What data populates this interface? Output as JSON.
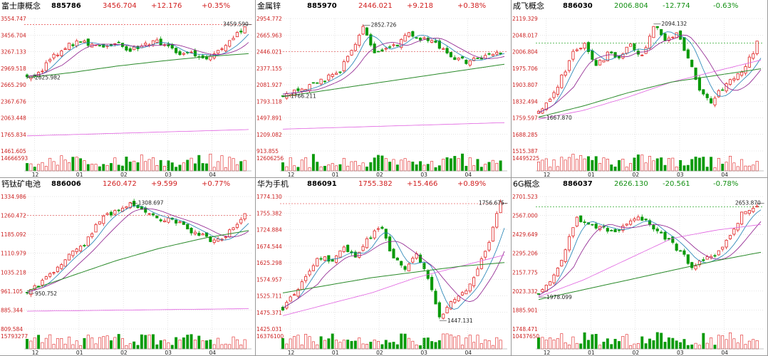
{
  "colors": {
    "up": "#e02020",
    "down": "#0a9a0a",
    "ma5": "#1d7fb3",
    "ma10": "#8b1a8b",
    "ma20": "#e060e0",
    "ma60": "#2a8a2a",
    "ma120": "#3aa0d0",
    "grid": "#c9c9c9",
    "axis": "#cc2222",
    "vol": "#aaaaaa"
  },
  "chart_data": [
    {
      "type": "candlestick",
      "name": "富士康概念",
      "code": "885786",
      "price": "3456.704",
      "change": "+12.176",
      "pct": "+0.35%",
      "direction": "up",
      "yticks": [
        "3554.747",
        "3456.704",
        "3267.133",
        "2969.518",
        "2665.290",
        "2367.676",
        "2063.448",
        "1765.834",
        "1461.605"
      ],
      "ymin": 1461.605,
      "ymax": 3554.747,
      "vol_label": "14666593",
      "months": [
        "12",
        "01",
        "02",
        "03",
        "04"
      ],
      "high_label": "3459.590",
      "low_label": "2625.982",
      "path": [
        2640,
        2700,
        2950,
        3100,
        3200,
        3150,
        3100,
        3180,
        3050,
        3150,
        3200,
        3100,
        2980,
        3000,
        2950,
        3050,
        3200,
        3456
      ],
      "long_ma": [
        2620,
        2700,
        2800,
        2880,
        2950,
        3000
      ],
      "extra_ma": [
        1700,
        1720,
        1740,
        1760,
        1780,
        1800
      ]
    },
    {
      "type": "candlestick",
      "name": "金属锌",
      "code": "885970",
      "price": "2446.021",
      "change": "+9.218",
      "pct": "+0.38%",
      "direction": "up",
      "yticks": [
        "2954.772",
        "2665.963",
        "2446.021",
        "2377.155",
        "2081.927",
        "1793.118",
        "1497.891",
        "1209.082",
        "913.855"
      ],
      "ymin": 913.855,
      "ymax": 2954.772,
      "vol_label": "12606256",
      "months": [
        "12",
        "01",
        "02",
        "03",
        "04"
      ],
      "high_label": "2852.726",
      "low_label": "1766.211",
      "path": [
        1790,
        1830,
        1880,
        1950,
        2050,
        2150,
        2450,
        2850,
        2450,
        2500,
        2560,
        2750,
        2650,
        2600,
        2450,
        2350,
        2280,
        2350,
        2400,
        2446
      ],
      "long_ma": [
        1750,
        1850,
        1950,
        2050,
        2150,
        2250
      ],
      "extra_ma": [
        1250,
        1270,
        1290,
        1310,
        1330,
        1350
      ]
    },
    {
      "type": "candlestick",
      "name": "成飞概念",
      "code": "886030",
      "price": "2006.804",
      "change": "-12.774",
      "pct": "-0.63%",
      "direction": "down",
      "yticks": [
        "2119.329",
        "2048.017",
        "2006.804",
        "1975.706",
        "1903.807",
        "1832.494",
        "1759.597",
        "1688.285",
        "1515.387"
      ],
      "ymin": 1515.387,
      "ymax": 2119.329,
      "vol_label": "14495225",
      "months": [
        "12",
        "01",
        "02",
        "03",
        "04"
      ],
      "high_label": "2094.132",
      "low_label": "1667.870",
      "path": [
        1690,
        1740,
        1850,
        1960,
        2000,
        1900,
        1960,
        1950,
        2000,
        1950,
        2094,
        2030,
        2050,
        1950,
        1800,
        1740,
        1800,
        1850,
        1900,
        2006
      ],
      "long_ma": [
        1670,
        1720,
        1780,
        1830,
        1860,
        1890
      ],
      "extra_ma": [
        1660,
        1700,
        1760,
        1830,
        1880,
        1930
      ]
    },
    {
      "type": "candlestick",
      "name": "钙钛矿电池",
      "code": "886006",
      "price": "1260.472",
      "change": "+9.599",
      "pct": "+0.77%",
      "direction": "up",
      "yticks": [
        "1334.986",
        "1260.472",
        "1185.092",
        "1110.979",
        "1035.218",
        "961.105",
        "885.344",
        "809.584"
      ],
      "ymin": 809.584,
      "ymax": 1334.986,
      "vol_label": "15793277",
      "months": [
        "12",
        "01",
        "02",
        "03",
        "04"
      ],
      "high_label": "1308.697",
      "low_label": "950.752",
      "path": [
        955,
        990,
        1050,
        1110,
        1150,
        1240,
        1280,
        1309,
        1270,
        1250,
        1240,
        1210,
        1180,
        1150,
        1200,
        1260
      ],
      "long_ma": [
        960,
        1020,
        1080,
        1130,
        1170,
        1200
      ],
      "extra_ma": [
        880,
        882,
        884,
        886,
        888,
        890
      ]
    },
    {
      "type": "candlestick",
      "name": "华为手机",
      "code": "886091",
      "price": "1755.382",
      "change": "+15.466",
      "pct": "+0.89%",
      "direction": "up",
      "yticks": [
        "1774.130",
        "1755.382",
        "1724.884",
        "1674.544",
        "1625.298",
        "1574.957",
        "1525.711",
        "1475.371",
        "1425.031"
      ],
      "ymin": 1425.031,
      "ymax": 1774.13,
      "vol_label": "16376100",
      "months": [
        "12",
        "01",
        "02",
        "03",
        "04"
      ],
      "high_label": "1756.675",
      "low_label": "1447.131",
      "path": [
        1480,
        1520,
        1570,
        1620,
        1600,
        1640,
        1610,
        1660,
        1700,
        1620,
        1580,
        1620,
        1560,
        1450,
        1500,
        1520,
        1580,
        1650,
        1756
      ],
      "long_ma": [
        1520,
        1540,
        1560,
        1575,
        1590,
        1600
      ],
      "extra_ma": [
        1460,
        1490,
        1520,
        1560,
        1590,
        1620
      ]
    },
    {
      "type": "candlestick",
      "name": "6G概念",
      "code": "886037",
      "price": "2626.130",
      "change": "-20.561",
      "pct": "-0.78%",
      "direction": "down",
      "yticks": [
        "2701.523",
        "2567.000",
        "2429.649",
        "2295.206",
        "2157.775",
        "2023.332",
        "1885.901",
        "1748.471"
      ],
      "ymin": 1748.471,
      "ymax": 2701.523,
      "vol_label": "10437650",
      "months": [
        "12",
        "01",
        "02",
        "03",
        "04"
      ],
      "high_label": "2653.870",
      "low_label": "1978.099",
      "path": [
        1990,
        2100,
        2300,
        2550,
        2500,
        2480,
        2450,
        2500,
        2550,
        2450,
        2400,
        2300,
        2200,
        2250,
        2300,
        2450,
        2600,
        2626
      ],
      "long_ma": [
        1960,
        2030,
        2100,
        2170,
        2240,
        2300
      ],
      "extra_ma": [
        1980,
        2100,
        2250,
        2400,
        2460,
        2500
      ]
    }
  ]
}
